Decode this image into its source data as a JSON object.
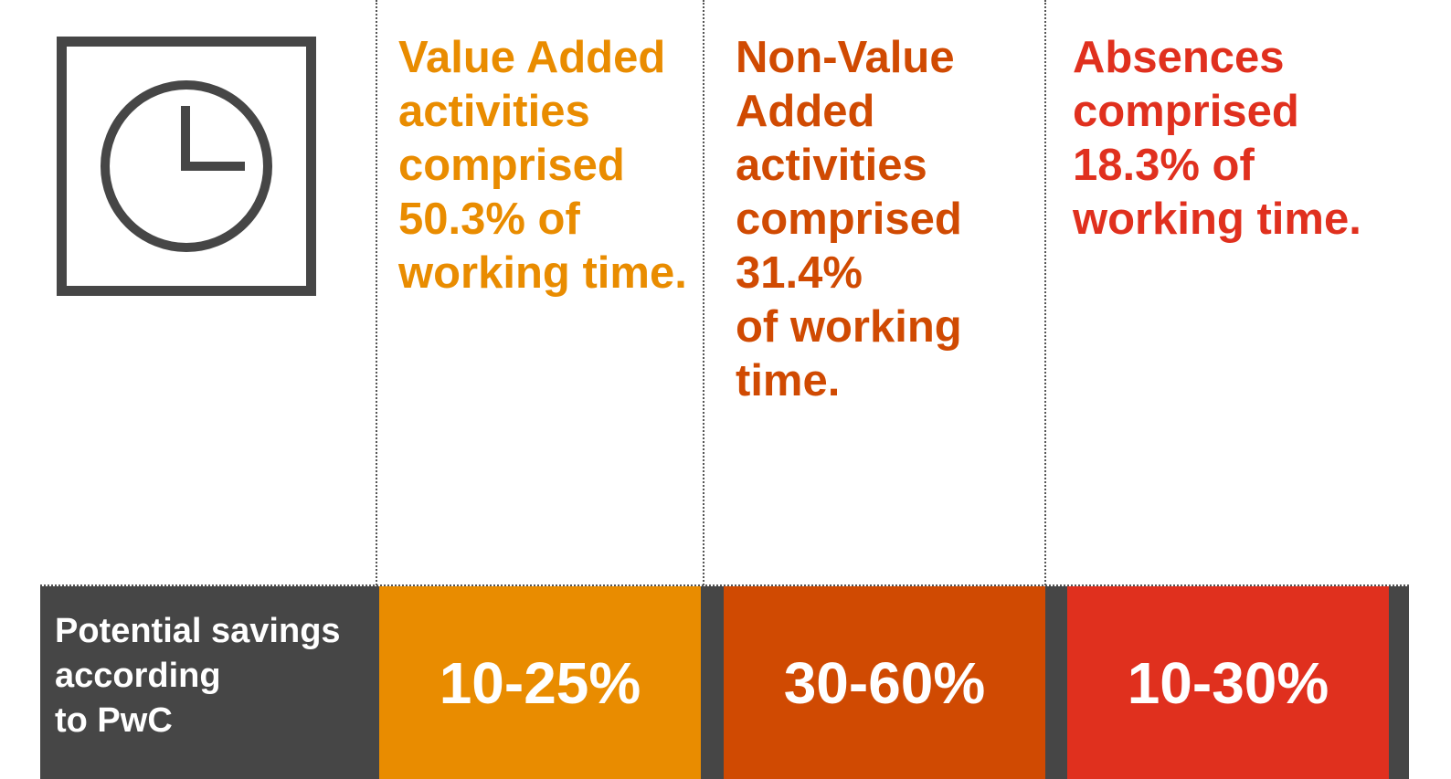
{
  "colors": {
    "value_added": "#E98C00",
    "non_value_added": "#D04A02",
    "absences": "#E0301E",
    "dark_band": "#464646",
    "icon": "#464646"
  },
  "icon": "clock-icon",
  "columns": [
    {
      "lines": [
        "Value Added",
        "activities",
        "comprised",
        "50.3% of",
        "working time."
      ]
    },
    {
      "lines": [
        "Non-Value",
        "Added",
        "activities",
        "comprised",
        "31.4%",
        "of working",
        "time."
      ]
    },
    {
      "lines": [
        "Absences",
        "comprised",
        "18.3% of",
        "working time."
      ]
    }
  ],
  "savings": {
    "label_lines": [
      "Potential savings",
      "according",
      "to PwC"
    ],
    "values": [
      "10-25%",
      "30-60%",
      "10-30%"
    ]
  }
}
